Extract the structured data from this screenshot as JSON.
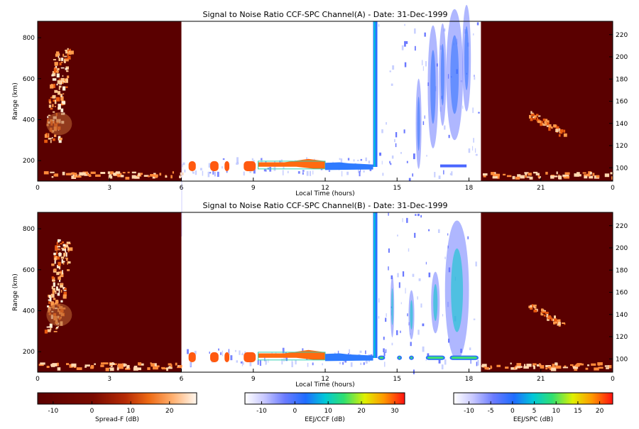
{
  "chart_data": [
    {
      "type": "heatmap",
      "title": "Signal to Noise Ratio CCF-SPC Channel(A) - Date: 31-Dec-1999",
      "xlabel": "Local Time (hours)",
      "ylabel": "Range (km)",
      "x_ticks": [
        "0",
        "3",
        "6",
        "9",
        "12",
        "15",
        "18",
        "21",
        "0"
      ],
      "y_ticks": [
        "200",
        "400",
        "600",
        "800"
      ],
      "y2_ticks": [
        "100",
        "120",
        "140",
        "160",
        "180",
        "200",
        "220"
      ],
      "xlim": [
        0,
        24
      ],
      "ylim": [
        100,
        880
      ],
      "y2lim": [
        88,
        232
      ],
      "segments": [
        {
          "mode": "Spread-F",
          "x": [
            0,
            6
          ],
          "colorbar": "Spread-F (dB)"
        },
        {
          "mode": "EEJ/CCF",
          "x": [
            6,
            14
          ],
          "colorbar": "EEJ/CCF (dB)"
        },
        {
          "mode": "EEJ/SPC",
          "x": [
            14,
            18.5
          ],
          "colorbar": "EEJ/SPC (dB)"
        },
        {
          "mode": "Spread-F",
          "x": [
            18.5,
            24
          ],
          "colorbar": "Spread-F (dB)"
        }
      ]
    },
    {
      "type": "heatmap",
      "title": "Signal to Noise Ratio CCF-SPC Channel(B) - Date: 31-Dec-1999",
      "xlabel": "Local Time (hours)",
      "ylabel": "Range (km)",
      "x_ticks": [
        "0",
        "3",
        "6",
        "9",
        "12",
        "15",
        "18",
        "21",
        "0"
      ],
      "y_ticks": [
        "200",
        "400",
        "600",
        "800"
      ],
      "y2_ticks": [
        "100",
        "120",
        "140",
        "160",
        "180",
        "200",
        "220"
      ],
      "xlim": [
        0,
        24
      ],
      "ylim": [
        100,
        880
      ],
      "y2lim": [
        88,
        232
      ],
      "segments": [
        {
          "mode": "Spread-F",
          "x": [
            0,
            6
          ],
          "colorbar": "Spread-F (dB)"
        },
        {
          "mode": "EEJ/CCF",
          "x": [
            6,
            14
          ],
          "colorbar": "EEJ/CCF (dB)"
        },
        {
          "mode": "EEJ/SPC",
          "x": [
            14,
            18.5
          ],
          "colorbar": "EEJ/SPC (dB)"
        },
        {
          "mode": "Spread-F",
          "x": [
            18.5,
            24
          ],
          "colorbar": "Spread-F (dB)"
        }
      ]
    }
  ],
  "colorbars": [
    {
      "label": "Spread-F (dB)",
      "min": -14,
      "max": 27,
      "ticks": [
        -10,
        0,
        10,
        20
      ],
      "palette": "red-temperature"
    },
    {
      "label": "EEJ/CCF (dB)",
      "min": -15,
      "max": 33,
      "ticks": [
        -10,
        0,
        10,
        20,
        30
      ],
      "palette": "rainbow"
    },
    {
      "label": "EEJ/SPC (dB)",
      "min": -13.5,
      "max": 23,
      "ticks": [
        -10,
        -5,
        0,
        5,
        10,
        15,
        20
      ],
      "palette": "rainbow"
    }
  ]
}
